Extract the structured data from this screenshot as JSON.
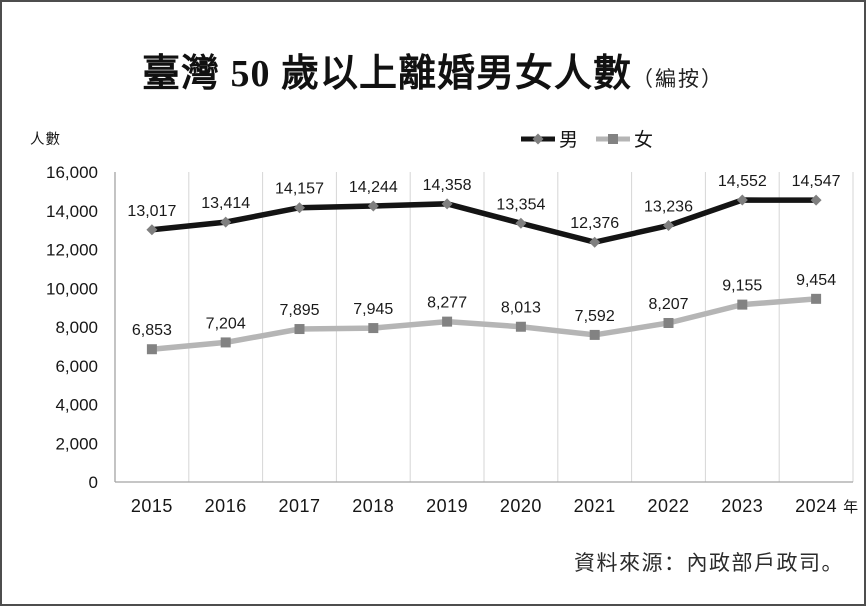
{
  "page": {
    "background": "#ffffff",
    "border_color": "#4d4d4d"
  },
  "title": {
    "main": "臺灣 50 歲以上離婚男女人數",
    "note": "（編按）"
  },
  "legend": {
    "items": [
      {
        "label": "男"
      },
      {
        "label": "女"
      }
    ]
  },
  "axes": {
    "y_unit_label": "人數",
    "x_unit_label": "年"
  },
  "source_note": "資料來源：內政部戶政司。",
  "chart_data": {
    "type": "line",
    "title": "臺灣 50 歲以上離婚男女人數（編按）",
    "categories": [
      "2015",
      "2016",
      "2017",
      "2018",
      "2019",
      "2020",
      "2021",
      "2022",
      "2023",
      "2024"
    ],
    "series": [
      {
        "name": "男",
        "line_color": "#141414",
        "marker": "diamond",
        "marker_color": "#7f7f7f",
        "values": [
          13017,
          13414,
          14157,
          14244,
          14358,
          13354,
          12376,
          13236,
          14552,
          14547
        ]
      },
      {
        "name": "女",
        "line_color": "#b5b5b5",
        "marker": "square",
        "marker_color": "#828282",
        "values": [
          6853,
          7204,
          7895,
          7945,
          8277,
          8013,
          7592,
          8207,
          9155,
          9454
        ]
      }
    ],
    "xlabel": "年",
    "ylabel": "人數",
    "ylim": [
      0,
      16000
    ],
    "ytick_step": 2000,
    "grid": "vertical-only",
    "gridline_color": "#d6d6d6",
    "axis_line_color": "#a3a3a3",
    "legend_position": "top-center",
    "data_labels": true
  }
}
